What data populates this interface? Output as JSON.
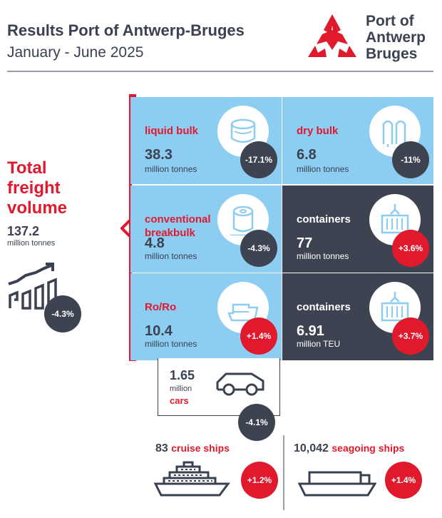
{
  "header": {
    "title": "Results Port of Antwerp-Bruges",
    "subtitle": "January - June 2025",
    "logo_lines": [
      "Port of",
      "Antwerp",
      "Bruges"
    ]
  },
  "colors": {
    "accent": "#e0192d",
    "dark": "#3d4350",
    "light_tile": "#8dcdf2",
    "text": "#3a4150"
  },
  "chart_data": {
    "type": "table",
    "title": "Total freight volume",
    "total": {
      "value": "137.2",
      "unit": "million tonnes",
      "change": "-4.3%"
    },
    "categories": [
      {
        "name": "liquid bulk",
        "value": "38.3",
        "unit": "million tonnes",
        "change": "-17.1%",
        "icon": "tank-icon"
      },
      {
        "name": "dry bulk",
        "value": "6.8",
        "unit": "million tonnes",
        "change": "-11%",
        "icon": "silo-icon"
      },
      {
        "name": "conventional breakbulk",
        "value": "4.8",
        "unit": "million tonnes",
        "change": "-4.3%",
        "icon": "coil-icon"
      },
      {
        "name": "containers",
        "value": "77",
        "unit": "million tonnes",
        "change": "+3.6%",
        "icon": "container-crane-icon"
      },
      {
        "name": "Ro/Ro",
        "value": "10.4",
        "unit": "million tonnes",
        "change": "+1.4%",
        "icon": "roro-ship-icon"
      },
      {
        "name": "containers",
        "value": "6.91",
        "unit": "million TEU",
        "change": "+3.7%",
        "icon": "container-crane-icon"
      }
    ],
    "cars": {
      "value": "1.65",
      "unit": "million",
      "name": "cars",
      "change": "-4.1%",
      "icon": "car-icon"
    },
    "cruise_ships": {
      "value": "83",
      "name": "cruise ships",
      "change": "+1.2%",
      "icon": "cruise-ship-icon"
    },
    "seagoing_ships": {
      "value": "10,042",
      "name": "seagoing ships",
      "change": "+1.4%",
      "icon": "cargo-ship-icon"
    }
  }
}
